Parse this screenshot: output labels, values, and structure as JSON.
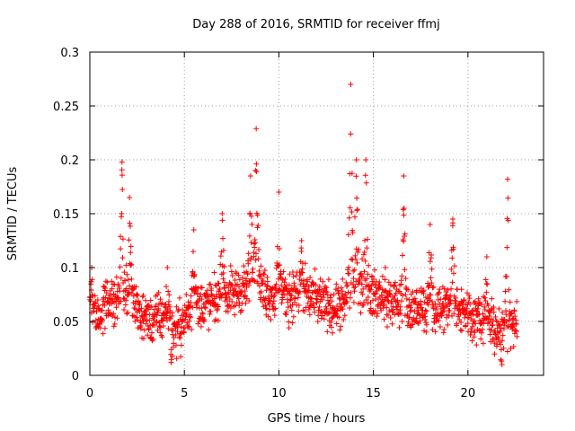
{
  "chart_data": {
    "type": "scatter",
    "title": "Day 288 of 2016, SRMTID for receiver ffmj",
    "xlabel": "GPS time / hours",
    "ylabel": "SRMTID / TECUs",
    "xlim": [
      0,
      24
    ],
    "ylim": [
      0,
      0.3
    ],
    "xticks": [
      0,
      5,
      10,
      15,
      20
    ],
    "xtick_labels": [
      "0",
      "5",
      "10",
      "15",
      "20"
    ],
    "yticks": [
      0,
      0.05,
      0.1,
      0.15,
      0.2,
      0.25,
      0.3
    ],
    "ytick_labels": [
      "0",
      "0.05",
      "0.1",
      "0.15",
      "0.2",
      "0.25",
      "0.3"
    ],
    "grid": true,
    "marker": "+",
    "color": "#ff0000",
    "series": [
      {
        "name": "SRMTID",
        "baseline_trend": [
          {
            "x": 0.0,
            "y": 0.06
          },
          {
            "x": 0.5,
            "y": 0.052
          },
          {
            "x": 1.0,
            "y": 0.07
          },
          {
            "x": 1.7,
            "y": 0.078
          },
          {
            "x": 2.2,
            "y": 0.072
          },
          {
            "x": 3.0,
            "y": 0.05
          },
          {
            "x": 4.0,
            "y": 0.055
          },
          {
            "x": 4.5,
            "y": 0.04
          },
          {
            "x": 5.5,
            "y": 0.062
          },
          {
            "x": 6.5,
            "y": 0.068
          },
          {
            "x": 7.5,
            "y": 0.075
          },
          {
            "x": 8.5,
            "y": 0.085
          },
          {
            "x": 9.3,
            "y": 0.078
          },
          {
            "x": 10.0,
            "y": 0.07
          },
          {
            "x": 11.0,
            "y": 0.078
          },
          {
            "x": 12.5,
            "y": 0.065
          },
          {
            "x": 13.3,
            "y": 0.062
          },
          {
            "x": 14.0,
            "y": 0.085
          },
          {
            "x": 15.0,
            "y": 0.075
          },
          {
            "x": 16.0,
            "y": 0.068
          },
          {
            "x": 17.0,
            "y": 0.06
          },
          {
            "x": 18.0,
            "y": 0.062
          },
          {
            "x": 19.0,
            "y": 0.065
          },
          {
            "x": 20.0,
            "y": 0.06
          },
          {
            "x": 20.8,
            "y": 0.048
          },
          {
            "x": 21.5,
            "y": 0.045
          },
          {
            "x": 22.0,
            "y": 0.04
          },
          {
            "x": 22.6,
            "y": 0.05
          }
        ],
        "peaks": [
          {
            "x": 0.1,
            "y": 0.1
          },
          {
            "x": 1.7,
            "y": 0.198
          },
          {
            "x": 2.1,
            "y": 0.165
          },
          {
            "x": 4.1,
            "y": 0.1
          },
          {
            "x": 5.5,
            "y": 0.135
          },
          {
            "x": 7.0,
            "y": 0.15
          },
          {
            "x": 8.5,
            "y": 0.185
          },
          {
            "x": 8.8,
            "y": 0.229
          },
          {
            "x": 10.0,
            "y": 0.17
          },
          {
            "x": 11.2,
            "y": 0.125
          },
          {
            "x": 13.8,
            "y": 0.27
          },
          {
            "x": 14.1,
            "y": 0.2
          },
          {
            "x": 14.6,
            "y": 0.2
          },
          {
            "x": 16.6,
            "y": 0.185
          },
          {
            "x": 18.0,
            "y": 0.14
          },
          {
            "x": 19.2,
            "y": 0.145
          },
          {
            "x": 21.0,
            "y": 0.11
          },
          {
            "x": 22.1,
            "y": 0.182
          }
        ],
        "minima": [
          {
            "x": 4.3,
            "y": 0.012
          },
          {
            "x": 21.8,
            "y": 0.01
          }
        ],
        "x_range": [
          0,
          22.6
        ]
      }
    ]
  }
}
